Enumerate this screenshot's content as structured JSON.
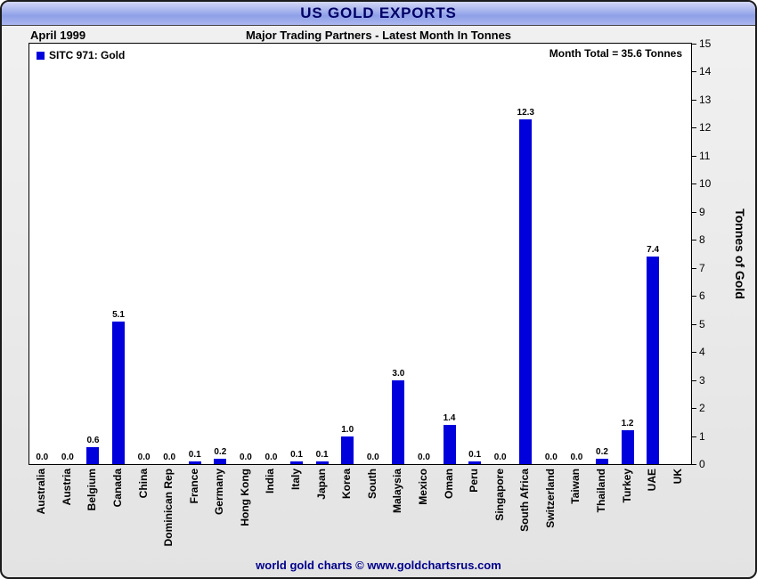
{
  "header": {
    "title": "US GOLD EXPORTS",
    "date": "April 1999",
    "subtitle": "Major Trading Partners - Latest Month In Tonnes"
  },
  "chart": {
    "legend_label": "SITC 971: Gold",
    "month_total": "Month Total = 35.6 Tonnes",
    "y_axis_title": "Tonnes of Gold"
  },
  "footer": {
    "text": "world gold charts © www.goldchartsrus.com"
  },
  "colors": {
    "bar": "#0000dd",
    "title_text": "#000066",
    "footer_text": "#00008b"
  },
  "chart_data": {
    "type": "bar",
    "title": "US GOLD EXPORTS",
    "subtitle": "Major Trading Partners - Latest Month In Tonnes",
    "period": "April 1999",
    "series_name": "SITC 971: Gold",
    "month_total_tonnes": 35.6,
    "categories": [
      "Australia",
      "Austria",
      "Belgium",
      "Canada",
      "China",
      "Dominican Rep",
      "France",
      "Germany",
      "Hong Kong",
      "India",
      "Italy",
      "Japan",
      "Korea",
      "South",
      "Malaysia",
      "Mexico",
      "Oman",
      "Peru",
      "Singapore",
      "South Africa",
      "Switzerland",
      "Taiwan",
      "Thailand",
      "Turkey",
      "UAE",
      "UK"
    ],
    "values": [
      0.0,
      0.0,
      0.6,
      5.1,
      0.0,
      0.0,
      0.1,
      0.2,
      0.0,
      0.0,
      0.1,
      0.1,
      1.0,
      0.0,
      3.0,
      0.0,
      1.4,
      0.1,
      0.0,
      12.3,
      0.0,
      0.0,
      0.2,
      1.2,
      7.4,
      0.0
    ],
    "value_labels": [
      "0.0",
      "0.0",
      "0.6",
      "5.1",
      "0.0",
      "0.0",
      "0.1",
      "0.2",
      "0.0",
      "0.0",
      "0.1",
      "0.1",
      "1.0",
      "0.0",
      "3.0",
      "0.0",
      "1.4",
      "0.1",
      "0.0",
      "12.3",
      "0.0",
      "0.0",
      "0.2",
      "1.2",
      "7.4",
      ""
    ],
    "xlabel": "",
    "ylabel": "Tonnes of Gold",
    "ylim": [
      0,
      15
    ],
    "ytick_step": 1,
    "grid": false,
    "legend_position": "top-left",
    "bar_color": "#0000dd"
  }
}
